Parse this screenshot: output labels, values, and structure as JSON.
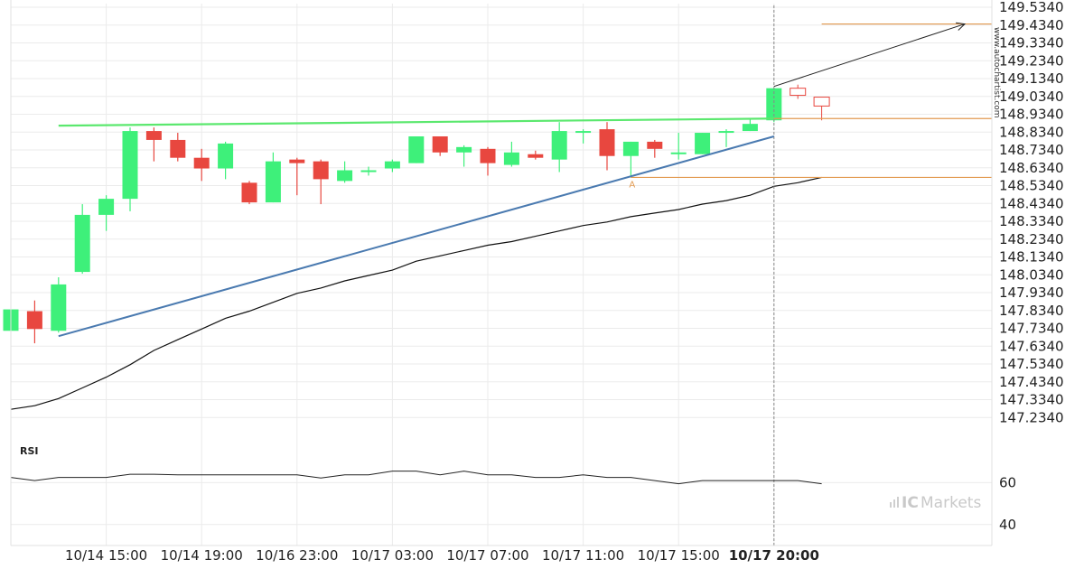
{
  "watermark": "www.autochartist.com",
  "brand": {
    "prefix": "IC",
    "suffix": "Markets"
  },
  "rsi_label": "RSI",
  "colors": {
    "bull": "#3ef07a",
    "bear": "#e8473f",
    "resistance": "#5be86e",
    "support": "#4a7ab0",
    "level": "#e29a50",
    "ma": "#111111",
    "grid": "#ebebeb",
    "forecast_arrow": "#222222"
  },
  "chart_data": [
    {
      "type": "candlestick",
      "ylim": [
        147.134,
        149.534
      ],
      "yticks": [
        149.534,
        149.434,
        149.334,
        149.234,
        149.134,
        149.034,
        148.934,
        148.834,
        148.734,
        148.634,
        148.534,
        148.434,
        148.334,
        148.234,
        148.134,
        148.034,
        147.934,
        147.834,
        147.734,
        147.634,
        147.534,
        147.434,
        147.334,
        147.234
      ],
      "ytick_labels": [
        "149.5340",
        "149.4340",
        "149.3340",
        "149.2340",
        "149.1340",
        "149.0340",
        "148.9340",
        "148.8340",
        "148.7340",
        "148.6340",
        "148.5340",
        "148.4340",
        "148.3340",
        "148.2340",
        "148.1340",
        "148.0340",
        "147.9340",
        "147.8340",
        "147.7340",
        "147.6340",
        "147.5340",
        "147.4340",
        "147.3340",
        "147.2340"
      ],
      "xtick_labels": [
        "10/14 15:00",
        "10/14 19:00",
        "10/16 23:00",
        "10/17 03:00",
        "10/17 07:00",
        "10/17 11:00",
        "10/17 15:00",
        "10/17 20:00"
      ],
      "xtick_bar_index": [
        4,
        8,
        12,
        16,
        20,
        24,
        28,
        32
      ],
      "highlighted_xtick": "10/17 20:00",
      "candles": [
        {
          "o": 147.72,
          "h": 147.84,
          "l": 147.72,
          "c": 147.84
        },
        {
          "o": 147.83,
          "h": 147.89,
          "l": 147.65,
          "c": 147.73
        },
        {
          "o": 147.72,
          "h": 148.02,
          "l": 147.71,
          "c": 147.98
        },
        {
          "o": 148.05,
          "h": 148.43,
          "l": 148.04,
          "c": 148.37
        },
        {
          "o": 148.37,
          "h": 148.48,
          "l": 148.28,
          "c": 148.46
        },
        {
          "o": 148.46,
          "h": 148.86,
          "l": 148.39,
          "c": 148.84
        },
        {
          "o": 148.84,
          "h": 148.86,
          "l": 148.67,
          "c": 148.79
        },
        {
          "o": 148.79,
          "h": 148.83,
          "l": 148.67,
          "c": 148.69
        },
        {
          "o": 148.69,
          "h": 148.74,
          "l": 148.56,
          "c": 148.63
        },
        {
          "o": 148.63,
          "h": 148.78,
          "l": 148.57,
          "c": 148.77
        },
        {
          "o": 148.55,
          "h": 148.56,
          "l": 148.43,
          "c": 148.44
        },
        {
          "o": 148.44,
          "h": 148.72,
          "l": 148.44,
          "c": 148.67
        },
        {
          "o": 148.68,
          "h": 148.69,
          "l": 148.48,
          "c": 148.66
        },
        {
          "o": 148.67,
          "h": 148.68,
          "l": 148.43,
          "c": 148.57
        },
        {
          "o": 148.56,
          "h": 148.67,
          "l": 148.55,
          "c": 148.62
        },
        {
          "o": 148.62,
          "h": 148.64,
          "l": 148.59,
          "c": 148.62
        },
        {
          "o": 148.63,
          "h": 148.68,
          "l": 148.61,
          "c": 148.67
        },
        {
          "o": 148.66,
          "h": 148.81,
          "l": 148.66,
          "c": 148.81
        },
        {
          "o": 148.81,
          "h": 148.81,
          "l": 148.7,
          "c": 148.72
        },
        {
          "o": 148.72,
          "h": 148.76,
          "l": 148.64,
          "c": 148.75
        },
        {
          "o": 148.74,
          "h": 148.75,
          "l": 148.59,
          "c": 148.66
        },
        {
          "o": 148.65,
          "h": 148.78,
          "l": 148.64,
          "c": 148.72
        },
        {
          "o": 148.71,
          "h": 148.73,
          "l": 148.68,
          "c": 148.69
        },
        {
          "o": 148.68,
          "h": 148.89,
          "l": 148.61,
          "c": 148.84
        },
        {
          "o": 148.84,
          "h": 148.85,
          "l": 148.77,
          "c": 148.84
        },
        {
          "o": 148.85,
          "h": 148.89,
          "l": 148.62,
          "c": 148.7
        },
        {
          "o": 148.7,
          "h": 148.78,
          "l": 148.58,
          "c": 148.78
        },
        {
          "o": 148.78,
          "h": 148.79,
          "l": 148.69,
          "c": 148.74
        },
        {
          "o": 148.72,
          "h": 148.83,
          "l": 148.68,
          "c": 148.72
        },
        {
          "o": 148.71,
          "h": 148.83,
          "l": 148.71,
          "c": 148.83
        },
        {
          "o": 148.83,
          "h": 148.85,
          "l": 148.75,
          "c": 148.84
        },
        {
          "o": 148.84,
          "h": 148.91,
          "l": 148.84,
          "c": 148.88
        },
        {
          "o": 148.9,
          "h": 149.08,
          "l": 148.89,
          "c": 149.08
        }
      ],
      "forecast_candles": [
        {
          "o": 149.08,
          "h": 149.1,
          "l": 149.02,
          "c": 149.04
        },
        {
          "o": 149.03,
          "h": 149.03,
          "l": 148.9,
          "c": 148.98
        }
      ],
      "moving_average": [
        147.28,
        147.3,
        147.34,
        147.4,
        147.46,
        147.53,
        147.61,
        147.67,
        147.73,
        147.79,
        147.83,
        147.88,
        147.93,
        147.96,
        148.0,
        148.03,
        148.06,
        148.11,
        148.14,
        148.17,
        148.2,
        148.22,
        148.25,
        148.28,
        148.31,
        148.33,
        148.36,
        148.38,
        148.4,
        148.43,
        148.45,
        148.48,
        148.53,
        148.55,
        148.58
      ],
      "resistance_line": {
        "from": {
          "bar": 2,
          "value": 148.87
        },
        "to": {
          "bar": 32,
          "value": 148.91
        }
      },
      "support_line": {
        "from": {
          "bar": 2,
          "value": 147.69
        },
        "to": {
          "bar": 32,
          "value": 148.81
        }
      },
      "levels": [
        {
          "value": 149.44,
          "from_bar": 34
        },
        {
          "value": 148.91,
          "from_bar": 32
        },
        {
          "value": 148.58,
          "from_bar": 26
        }
      ],
      "point_label": {
        "text": "A",
        "bar": 26,
        "value": 148.57
      },
      "forecast_arrow": {
        "from": {
          "bar": 32,
          "value": 149.09
        },
        "to": {
          "bar": 40,
          "value": 149.44
        }
      }
    },
    {
      "type": "line",
      "name": "RSI",
      "ylim": [
        30,
        80
      ],
      "yticks": [
        40,
        60
      ],
      "values": [
        62.5,
        61.0,
        62.5,
        62.5,
        62.5,
        64.0,
        64.0,
        63.7,
        63.7,
        63.7,
        63.7,
        63.7,
        63.7,
        62.2,
        63.7,
        63.7,
        65.5,
        65.5,
        63.7,
        65.5,
        63.7,
        63.7,
        62.5,
        62.5,
        63.7,
        62.5,
        62.5,
        61.0,
        59.5,
        61.0,
        61.0,
        61.0,
        61.0,
        61.0,
        59.5
      ]
    }
  ]
}
